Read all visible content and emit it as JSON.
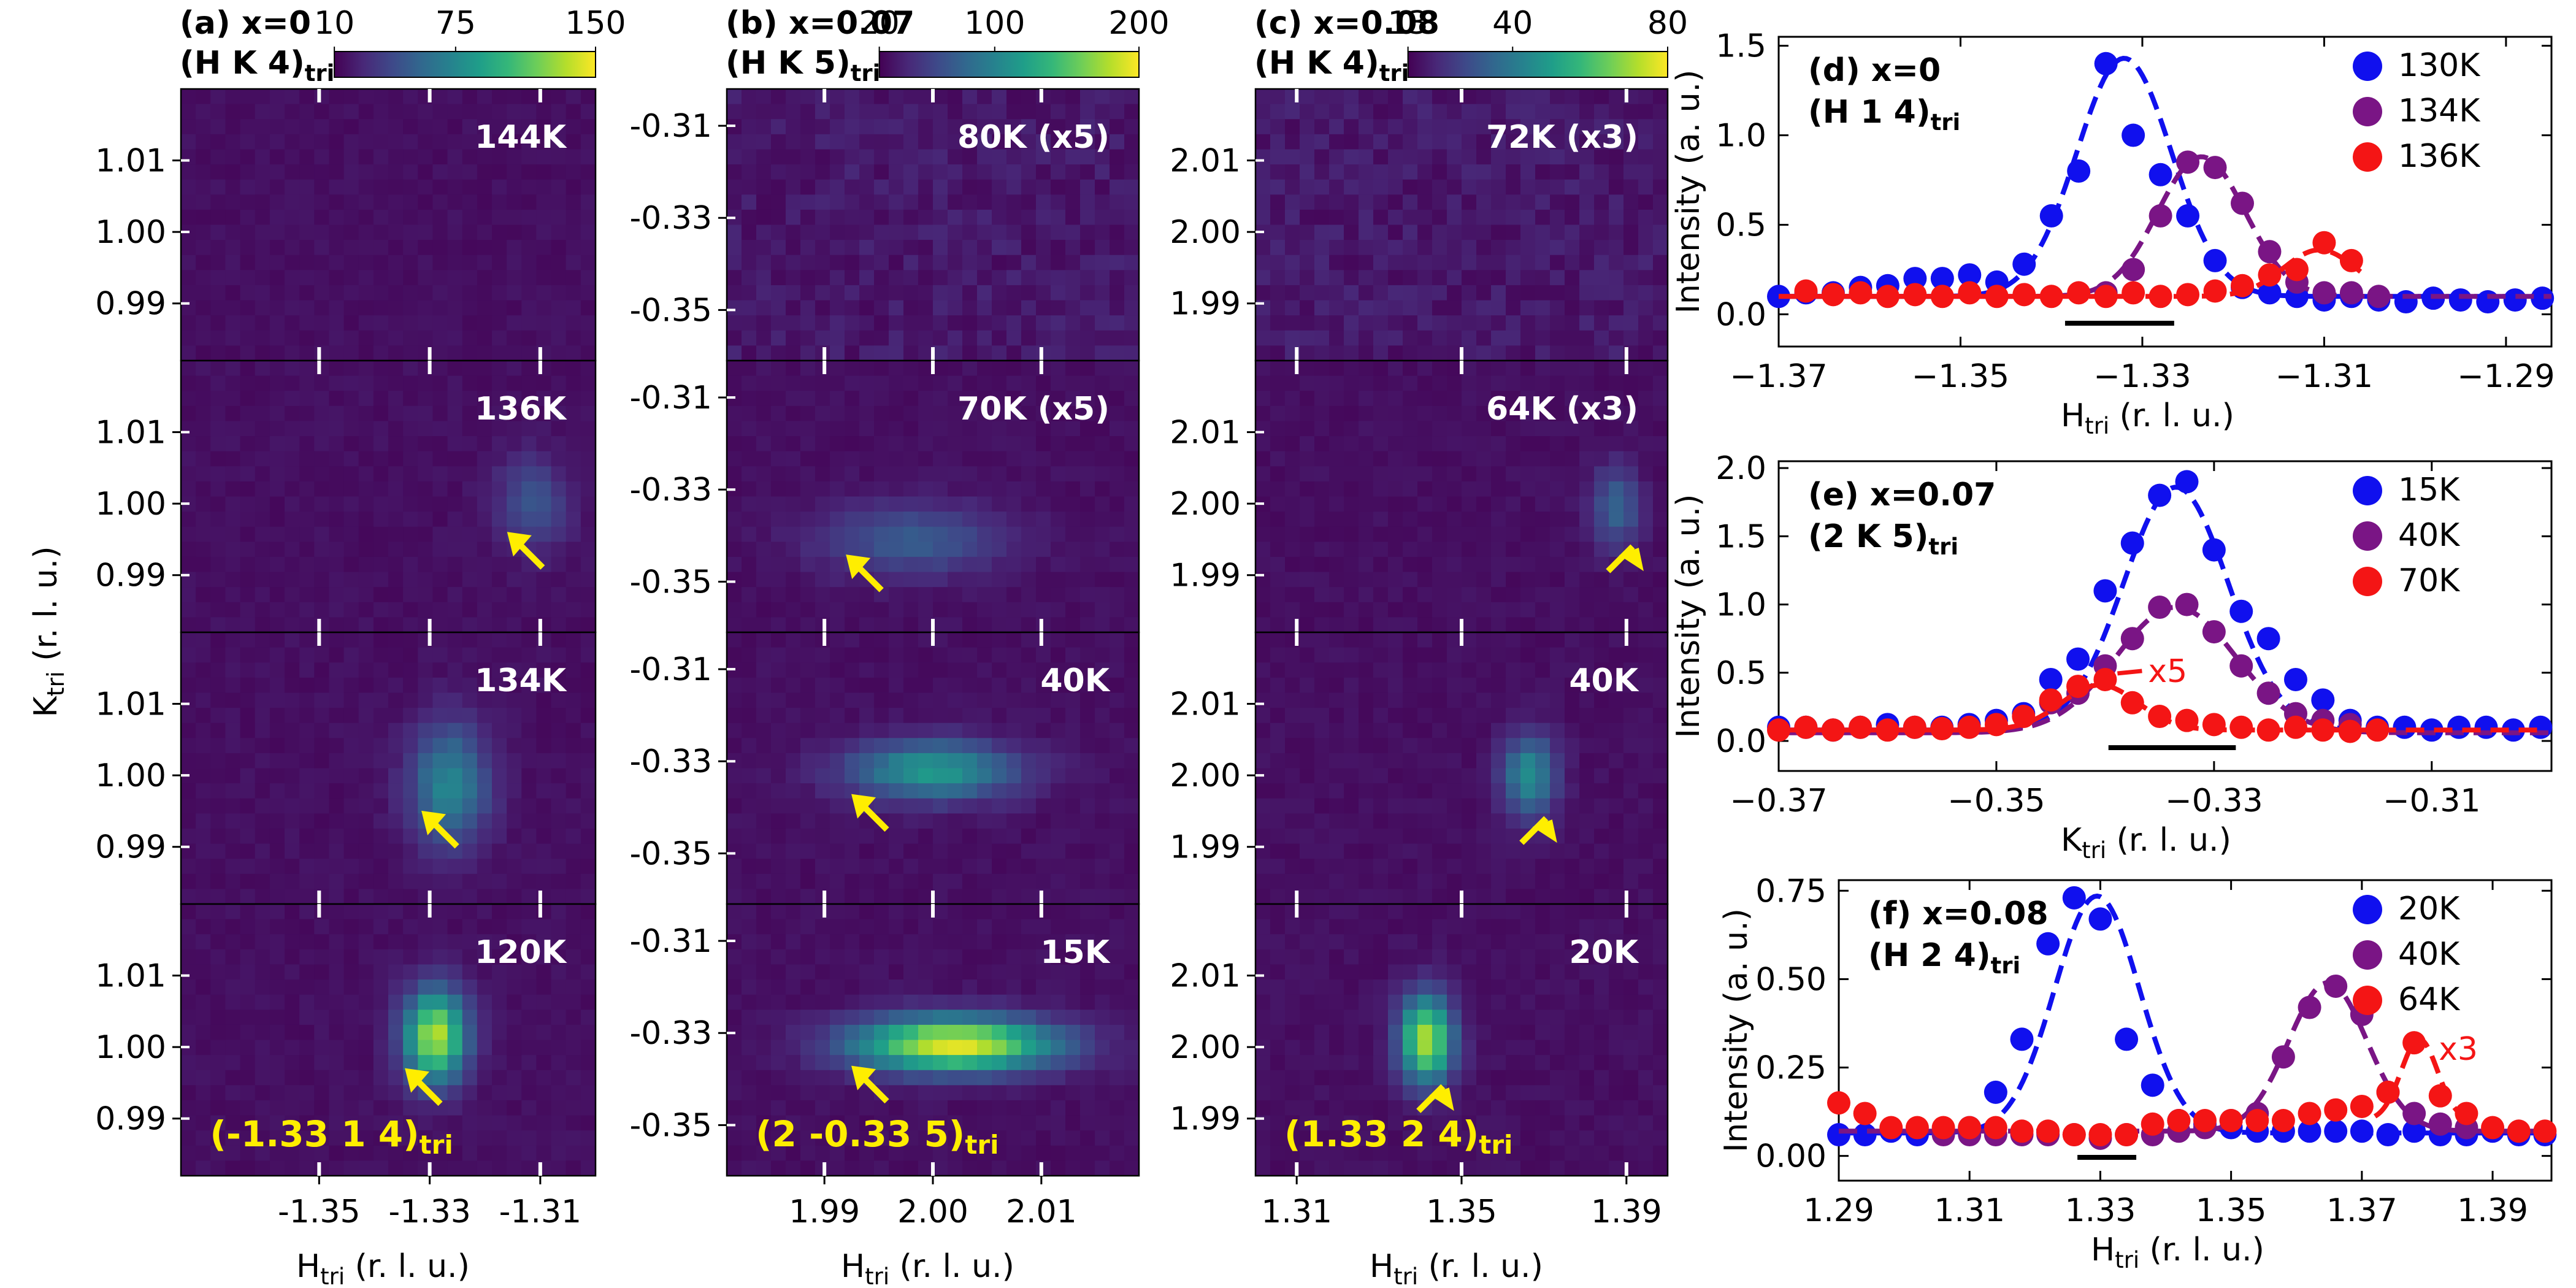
{
  "colors": {
    "viridis": [
      "#440154",
      "#482878",
      "#3e4989",
      "#31688e",
      "#26828e",
      "#1f9e89",
      "#35b779",
      "#6ece58",
      "#b5de2b",
      "#fde725"
    ],
    "blue": "#1010ee",
    "purple": "#7a1585",
    "red": "#f41515",
    "arrow": "#ffee00",
    "annot": "#ffee00"
  },
  "axis_labels": {
    "map_y": "K",
    "map_y_sub": "tri",
    "map_y_unit": "(r. l. u.)",
    "map_x": "H",
    "map_x_sub": "tri",
    "map_x_unit": "(r. l. u.)",
    "line_y": "Intensity (a. u.)"
  },
  "chart_data": [
    {
      "panel": "a",
      "type": "heatmap",
      "title_line1": "(a) x=0",
      "title_line2": "(H K 4)",
      "title_sub": "tri",
      "colorbar_ticks": [
        "10",
        "75",
        "150"
      ],
      "colorbar_range": [
        10,
        150
      ],
      "xlim": [
        -1.375,
        -1.3
      ],
      "ylim": [
        0.982,
        1.02
      ],
      "x_ticks": [
        "-1.35",
        "-1.33",
        "-1.31"
      ],
      "x_tick_values": [
        -1.35,
        -1.33,
        -1.31
      ],
      "y_ticks": [
        "1.01",
        "1.00",
        "0.99"
      ],
      "y_tick_values": [
        1.01,
        1.0,
        0.99
      ],
      "annotation": "(-1.33 1 4)",
      "annotation_sub": "tri",
      "rows": [
        {
          "temperature": "144K",
          "spots": [],
          "arrow": null
        },
        {
          "temperature": "136K",
          "spots": [
            {
              "x": -1.3115,
              "y": 1.0,
              "sx": 0.0045,
              "sy": 0.0045,
              "amp": 0.22
            }
          ],
          "arrow": {
            "x": -1.314,
            "y": 0.9945
          }
        },
        {
          "temperature": "134K",
          "spots": [
            {
              "x": -1.3265,
              "y": 0.9985,
              "sx": 0.005,
              "sy": 0.006,
              "amp": 0.42
            }
          ],
          "arrow": {
            "x": -1.3295,
            "y": 0.9935
          }
        },
        {
          "temperature": "120K",
          "spots": [
            {
              "x": -1.329,
              "y": 1.0015,
              "sx": 0.004,
              "sy": 0.0045,
              "amp": 0.85
            }
          ],
          "arrow": {
            "x": -1.3325,
            "y": 0.9955
          }
        }
      ]
    },
    {
      "panel": "b",
      "type": "heatmap",
      "title_line1": "(b) x=0.07",
      "title_line2": "(H K 5)",
      "title_sub": "tri",
      "colorbar_ticks": [
        "20",
        "100",
        "200"
      ],
      "colorbar_range": [
        20,
        200
      ],
      "xlim": [
        1.981,
        2.019
      ],
      "ylim": [
        -0.361,
        -0.302
      ],
      "x_ticks": [
        "1.99",
        "2.00",
        "2.01"
      ],
      "x_tick_values": [
        1.99,
        2.0,
        2.01
      ],
      "y_ticks": [
        "-0.31",
        "-0.33",
        "-0.35"
      ],
      "y_tick_values": [
        -0.31,
        -0.33,
        -0.35
      ],
      "annotation": "(2 -0.33 5)",
      "annotation_sub": "tri",
      "rows": [
        {
          "temperature": "80K (x5)",
          "spots": [],
          "arrow": null
        },
        {
          "temperature": "70K (x5)",
          "spots": [
            {
              "x": 1.998,
              "y": -0.341,
              "sx": 0.006,
              "sy": 0.0055,
              "amp": 0.25
            }
          ],
          "arrow": {
            "x": 1.993,
            "y": -0.3465
          }
        },
        {
          "temperature": "40K",
          "spots": [
            {
              "x": 2.0,
              "y": -0.332,
              "sx": 0.0055,
              "sy": 0.0045,
              "amp": 0.5
            }
          ],
          "arrow": {
            "x": 1.9935,
            "y": -0.3395
          }
        },
        {
          "temperature": "15K",
          "spots": [
            {
              "x": 2.002,
              "y": -0.3325,
              "sx": 0.0065,
              "sy": 0.0042,
              "amp": 0.93
            }
          ],
          "arrow": {
            "x": 1.9935,
            "y": -0.3395
          }
        }
      ]
    },
    {
      "panel": "c",
      "type": "heatmap",
      "title_line1": "(c) x=0.08",
      "title_line2": "(H K 4)",
      "title_sub": "tri",
      "colorbar_ticks": [
        "13",
        "40",
        "80"
      ],
      "colorbar_range": [
        13,
        80
      ],
      "xlim": [
        1.3,
        1.4
      ],
      "ylim": [
        1.982,
        2.02
      ],
      "x_ticks": [
        "1.31",
        "1.35",
        "1.39"
      ],
      "x_tick_values": [
        1.31,
        1.35,
        1.39
      ],
      "y_ticks": [
        "2.01",
        "2.00",
        "1.99"
      ],
      "y_tick_values": [
        2.01,
        2.0,
        1.99
      ],
      "annotation": "(1.33 2 4)",
      "annotation_sub": "tri",
      "rows": [
        {
          "temperature": "72K (x3)",
          "spots": [],
          "arrow": null
        },
        {
          "temperature": "64K (x3)",
          "spots": [
            {
              "x": 1.3875,
              "y": 1.9995,
              "sx": 0.004,
              "sy": 0.004,
              "amp": 0.28
            }
          ],
          "arrow": {
            "x": 1.3915,
            "y": 1.994
          }
        },
        {
          "temperature": "40K",
          "spots": [
            {
              "x": 1.3665,
              "y": 2.0,
              "sx": 0.0045,
              "sy": 0.004,
              "amp": 0.45
            }
          ],
          "arrow": {
            "x": 1.3705,
            "y": 1.994
          }
        },
        {
          "temperature": "20K",
          "spots": [
            {
              "x": 1.3415,
              "y": 2.001,
              "sx": 0.0045,
              "sy": 0.0042,
              "amp": 0.85
            }
          ],
          "arrow": {
            "x": 1.3455,
            "y": 1.9945
          }
        }
      ]
    },
    {
      "panel": "d",
      "type": "scatter",
      "title_line1": "(d) x=0",
      "title_line2": "(H 1 4)",
      "title_sub": "tri",
      "xlabel": "H",
      "xlabel_sub": "tri",
      "xlabel_unit": "(r. l. u.)",
      "xlim": [
        -1.37,
        -1.285
      ],
      "ylim": [
        -0.18,
        1.55
      ],
      "x_ticks": [
        "-1.37",
        "-1.35",
        "-1.33",
        "-1.31",
        "-1.29"
      ],
      "x_tick_values": [
        -1.37,
        -1.35,
        -1.33,
        -1.31,
        -1.29
      ],
      "y_ticks": [
        "0.0",
        "0.5",
        "1.0",
        "1.5"
      ],
      "y_tick_values": [
        0.0,
        0.5,
        1.0,
        1.5
      ],
      "resolution_bar": [
        -1.3385,
        -1.3265
      ],
      "series": [
        {
          "name": "130K",
          "color": "blue",
          "x": [
            -1.37,
            -1.367,
            -1.364,
            -1.361,
            -1.358,
            -1.355,
            -1.352,
            -1.349,
            -1.346,
            -1.343,
            -1.34,
            -1.337,
            -1.334,
            -1.331,
            -1.328,
            -1.325,
            -1.322,
            -1.319,
            -1.316,
            -1.313,
            -1.31,
            -1.307,
            -1.304,
            -1.301,
            -1.298,
            -1.295,
            -1.292,
            -1.289,
            -1.286
          ],
          "y": [
            0.1,
            0.12,
            0.12,
            0.15,
            0.16,
            0.2,
            0.2,
            0.22,
            0.18,
            0.28,
            0.55,
            0.8,
            1.4,
            1.0,
            0.78,
            0.55,
            0.3,
            0.15,
            0.12,
            0.1,
            0.08,
            0.1,
            0.08,
            0.07,
            0.09,
            0.08,
            0.07,
            0.08,
            0.09
          ],
          "fit": {
            "type": "gauss",
            "center": -1.332,
            "sigma": 0.0052,
            "amp": 1.33,
            "base": 0.1
          }
        },
        {
          "name": "134K",
          "color": "purple",
          "x": [
            -1.334,
            -1.331,
            -1.328,
            -1.325,
            -1.322,
            -1.319,
            -1.316,
            -1.313,
            -1.31,
            -1.307,
            -1.304
          ],
          "y": [
            0.12,
            0.25,
            0.55,
            0.85,
            0.82,
            0.62,
            0.35,
            0.18,
            0.12,
            0.12,
            0.1
          ],
          "fit": {
            "type": "gauss",
            "center": -1.3235,
            "sigma": 0.0048,
            "amp": 0.78,
            "base": 0.1
          }
        },
        {
          "name": "136K",
          "color": "red",
          "x": [
            -1.367,
            -1.364,
            -1.361,
            -1.358,
            -1.355,
            -1.352,
            -1.349,
            -1.346,
            -1.343,
            -1.34,
            -1.337,
            -1.334,
            -1.331,
            -1.328,
            -1.325,
            -1.322,
            -1.319,
            -1.316,
            -1.313,
            -1.31,
            -1.307
          ],
          "y": [
            0.13,
            0.11,
            0.12,
            0.1,
            0.11,
            0.1,
            0.12,
            0.1,
            0.11,
            0.1,
            0.12,
            0.1,
            0.12,
            0.1,
            0.11,
            0.13,
            0.16,
            0.22,
            0.25,
            0.4,
            0.3
          ],
          "fit": {
            "type": "gauss",
            "center": -1.3105,
            "sigma": 0.004,
            "amp": 0.26,
            "base": 0.1,
            "xmin": -1.37,
            "xmax": -1.306
          }
        }
      ]
    },
    {
      "panel": "e",
      "type": "scatter",
      "title_line1": "(e) x=0.07",
      "title_line2": "(2 K 5)",
      "title_sub": "tri",
      "xlabel": "K",
      "xlabel_sub": "tri",
      "xlabel_unit": "(r. l. u.)",
      "xlim": [
        -0.37,
        -0.299
      ],
      "ylim": [
        -0.22,
        2.05
      ],
      "x_ticks": [
        "-0.37",
        "-0.35",
        "-0.33",
        "-0.31"
      ],
      "x_tick_values": [
        -0.37,
        -0.35,
        -0.33,
        -0.31
      ],
      "y_ticks": [
        "0.0",
        "0.5",
        "1.0",
        "1.5",
        "2.0"
      ],
      "y_tick_values": [
        0.0,
        0.5,
        1.0,
        1.5,
        2.0
      ],
      "resolution_bar": [
        -0.3397,
        -0.328
      ],
      "annotation": "x5",
      "annotation_color": "red",
      "series": [
        {
          "name": "15K",
          "color": "blue",
          "x": [
            -0.37,
            -0.3675,
            -0.365,
            -0.3625,
            -0.36,
            -0.3575,
            -0.355,
            -0.3525,
            -0.35,
            -0.3475,
            -0.345,
            -0.3425,
            -0.34,
            -0.3375,
            -0.335,
            -0.3325,
            -0.33,
            -0.3275,
            -0.325,
            -0.3225,
            -0.32,
            -0.3175,
            -0.315,
            -0.3125,
            -0.31,
            -0.3075,
            -0.305,
            -0.3025,
            -0.3
          ],
          "y": [
            0.1,
            0.1,
            0.08,
            0.1,
            0.12,
            0.1,
            0.1,
            0.12,
            0.15,
            0.2,
            0.45,
            0.6,
            1.1,
            1.45,
            1.8,
            1.9,
            1.4,
            0.95,
            0.75,
            0.45,
            0.3,
            0.15,
            0.1,
            0.1,
            0.08,
            0.1,
            0.1,
            0.08,
            0.1
          ],
          "fit": {
            "type": "gauss",
            "center": -0.3335,
            "sigma": 0.0048,
            "amp": 1.78,
            "base": 0.08
          }
        },
        {
          "name": "40K",
          "color": "purple",
          "x": [
            -0.345,
            -0.3425,
            -0.34,
            -0.3375,
            -0.335,
            -0.3325,
            -0.33,
            -0.3275,
            -0.325,
            -0.3225,
            -0.32,
            -0.3175
          ],
          "y": [
            0.28,
            0.35,
            0.55,
            0.75,
            0.98,
            1.0,
            0.8,
            0.55,
            0.35,
            0.2,
            0.15,
            0.12
          ],
          "fit": {
            "type": "gauss",
            "center": -0.3335,
            "sigma": 0.0055,
            "amp": 0.92,
            "base": 0.06
          }
        },
        {
          "name": "70K",
          "color": "red",
          "x": [
            -0.37,
            -0.3675,
            -0.365,
            -0.3625,
            -0.36,
            -0.3575,
            -0.355,
            -0.3525,
            -0.35,
            -0.3475,
            -0.345,
            -0.3425,
            -0.34,
            -0.3375,
            -0.335,
            -0.3325,
            -0.33,
            -0.3275,
            -0.325,
            -0.3225,
            -0.32,
            -0.3175,
            -0.315
          ],
          "y": [
            0.08,
            0.1,
            0.08,
            0.1,
            0.08,
            0.1,
            0.09,
            0.1,
            0.12,
            0.18,
            0.3,
            0.4,
            0.45,
            0.28,
            0.18,
            0.15,
            0.12,
            0.1,
            0.08,
            0.1,
            0.08,
            0.07,
            0.08
          ],
          "fit": {
            "type": "gauss",
            "center": -0.3405,
            "sigma": 0.0035,
            "amp": 0.33,
            "base": 0.08,
            "xmin": -0.37,
            "xmax": -0.3
          }
        }
      ]
    },
    {
      "panel": "f",
      "type": "scatter",
      "title_line1": "(f) x=0.08",
      "title_line2": "(H 2 4)",
      "title_sub": "tri",
      "xlabel": "H",
      "xlabel_sub": "tri",
      "xlabel_unit": "(r. l. u.)",
      "xlim": [
        1.29,
        1.399
      ],
      "ylim": [
        -0.07,
        0.78
      ],
      "x_ticks": [
        "1.29",
        "1.31",
        "1.33",
        "1.35",
        "1.37",
        "1.39"
      ],
      "x_tick_values": [
        1.29,
        1.31,
        1.33,
        1.35,
        1.37,
        1.39
      ],
      "y_ticks": [
        "0.00",
        "0.25",
        "0.50",
        "0.75"
      ],
      "y_tick_values": [
        0.0,
        0.25,
        0.5,
        0.75
      ],
      "resolution_bar": [
        1.3265,
        1.3355
      ],
      "annotation": "x3",
      "annotation_color": "red",
      "series": [
        {
          "name": "20K",
          "color": "blue",
          "x": [
            1.29,
            1.294,
            1.298,
            1.302,
            1.306,
            1.31,
            1.314,
            1.318,
            1.322,
            1.326,
            1.33,
            1.334,
            1.338,
            1.342,
            1.346,
            1.35,
            1.354,
            1.358,
            1.362,
            1.366,
            1.37,
            1.374,
            1.378,
            1.382,
            1.386,
            1.39,
            1.394,
            1.398
          ],
          "y": [
            0.06,
            0.06,
            0.07,
            0.06,
            0.07,
            0.08,
            0.18,
            0.33,
            0.6,
            0.73,
            0.67,
            0.33,
            0.2,
            0.1,
            0.09,
            0.08,
            0.07,
            0.07,
            0.07,
            0.07,
            0.07,
            0.06,
            0.07,
            0.06,
            0.06,
            0.07,
            0.06,
            0.06
          ],
          "fit": {
            "type": "gauss",
            "center": 1.3295,
            "sigma": 0.0065,
            "amp": 0.67,
            "base": 0.065
          }
        },
        {
          "name": "40K",
          "color": "purple",
          "x": [
            1.306,
            1.31,
            1.314,
            1.318,
            1.322,
            1.326,
            1.33,
            1.334,
            1.338,
            1.342,
            1.346,
            1.35,
            1.354,
            1.358,
            1.362,
            1.366,
            1.37,
            1.374,
            1.378,
            1.382,
            1.386
          ],
          "y": [
            0.06,
            0.06,
            0.06,
            0.06,
            0.06,
            0.06,
            0.05,
            0.06,
            0.06,
            0.07,
            0.08,
            0.1,
            0.12,
            0.28,
            0.42,
            0.48,
            0.4,
            0.18,
            0.12,
            0.09,
            0.08
          ],
          "fit": {
            "type": "gauss",
            "center": 1.3648,
            "sigma": 0.006,
            "amp": 0.42,
            "base": 0.07
          }
        },
        {
          "name": "64K",
          "color": "red",
          "x": [
            1.29,
            1.294,
            1.298,
            1.302,
            1.306,
            1.31,
            1.314,
            1.318,
            1.322,
            1.326,
            1.33,
            1.334,
            1.338,
            1.342,
            1.346,
            1.35,
            1.354,
            1.358,
            1.362,
            1.366,
            1.37,
            1.374,
            1.378,
            1.382,
            1.386,
            1.39,
            1.394,
            1.398
          ],
          "y": [
            0.15,
            0.12,
            0.08,
            0.08,
            0.08,
            0.08,
            0.08,
            0.07,
            0.07,
            0.06,
            0.06,
            0.06,
            0.09,
            0.1,
            0.1,
            0.1,
            0.1,
            0.1,
            0.12,
            0.13,
            0.14,
            0.18,
            0.32,
            0.17,
            0.12,
            0.08,
            0.07,
            0.07
          ],
          "fit": {
            "type": "gauss",
            "center": 1.3788,
            "sigma": 0.0028,
            "amp": 0.23,
            "base": 0.1,
            "xmin": 1.372,
            "xmax": 1.387
          }
        }
      ]
    }
  ]
}
